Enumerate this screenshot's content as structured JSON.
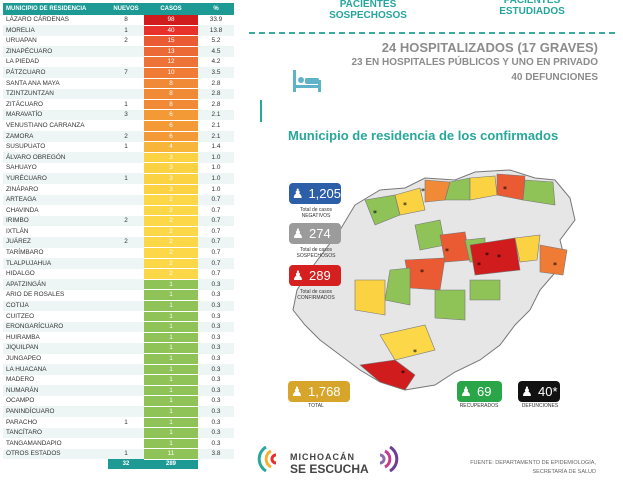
{
  "table": {
    "headers": [
      "MUNICIPIO DE RESIDENCIA",
      "NUEVOS",
      "CASOS",
      "%"
    ],
    "rows": [
      {
        "m": "LÁZARO CÁRDENAS",
        "n": "8",
        "c": "98",
        "p": "33.9",
        "col": "#d01c1c"
      },
      {
        "m": "MORELIA",
        "n": "1",
        "c": "40",
        "p": "13.8",
        "col": "#e8312b"
      },
      {
        "m": "URUAPAN",
        "n": "2",
        "c": "15",
        "p": "5.2",
        "col": "#ea5a33"
      },
      {
        "m": "ZINAPÉCUARO",
        "n": "",
        "c": "13",
        "p": "4.5",
        "col": "#ec6a35"
      },
      {
        "m": "LA PIEDAD",
        "n": "",
        "c": "12",
        "p": "4.2",
        "col": "#ee7336"
      },
      {
        "m": "PÁTZCUARO",
        "n": "7",
        "c": "10",
        "p": "3.5",
        "col": "#ef7b35"
      },
      {
        "m": "SANTA ANA MAYA",
        "n": "",
        "c": "8",
        "p": "2.8",
        "col": "#f08a36"
      },
      {
        "m": "TZINTZUNTZAN",
        "n": "",
        "c": "8",
        "p": "2.8",
        "col": "#f08a36"
      },
      {
        "m": "ZITÁCUARO",
        "n": "1",
        "c": "8",
        "p": "2.8",
        "col": "#f08a36"
      },
      {
        "m": "MARAVATÍO",
        "n": "3",
        "c": "6",
        "p": "2.1",
        "col": "#f39a37"
      },
      {
        "m": "VENUSTIANO CARRANZA",
        "n": "",
        "c": "6",
        "p": "2.1",
        "col": "#f39a37"
      },
      {
        "m": "ZAMORA",
        "n": "2",
        "c": "6",
        "p": "2.1",
        "col": "#f39a37"
      },
      {
        "m": "SUSUPUATO",
        "n": "1",
        "c": "4",
        "p": "1.4",
        "col": "#f7b53a"
      },
      {
        "m": "ÁLVARO OBREGÓN",
        "n": "",
        "c": "3",
        "p": "1.0",
        "col": "#fbd241"
      },
      {
        "m": "SAHUAYO",
        "n": "",
        "c": "3",
        "p": "1.0",
        "col": "#fbd241"
      },
      {
        "m": "YURÉCUARO",
        "n": "1",
        "c": "3",
        "p": "1.0",
        "col": "#fbd241"
      },
      {
        "m": "ZINÁPARO",
        "n": "",
        "c": "3",
        "p": "1.0",
        "col": "#fbd241"
      },
      {
        "m": "ARTEAGA",
        "n": "",
        "c": "2",
        "p": "0.7",
        "col": "#fcd747"
      },
      {
        "m": "CHAVINDA",
        "n": "",
        "c": "2",
        "p": "0.7",
        "col": "#fcd747"
      },
      {
        "m": "IRIMBO",
        "n": "2",
        "c": "2",
        "p": "0.7",
        "col": "#fcd747"
      },
      {
        "m": "IXTLÁN",
        "n": "",
        "c": "2",
        "p": "0.7",
        "col": "#fcd747"
      },
      {
        "m": "JUÁREZ",
        "n": "2",
        "c": "2",
        "p": "0.7",
        "col": "#fcd747"
      },
      {
        "m": "TARÍMBARO",
        "n": "",
        "c": "2",
        "p": "0.7",
        "col": "#fcd747"
      },
      {
        "m": "TLALPUJAHUA",
        "n": "",
        "c": "2",
        "p": "0.7",
        "col": "#fcd747"
      },
      {
        "m": "HIDALGO",
        "n": "",
        "c": "2",
        "p": "0.7",
        "col": "#fcd747"
      },
      {
        "m": "APATZINGÁN",
        "n": "",
        "c": "1",
        "p": "0.3",
        "col": "#8fc257"
      },
      {
        "m": "ARIO DE ROSALES",
        "n": "",
        "c": "1",
        "p": "0.3",
        "col": "#8fc257"
      },
      {
        "m": "COTIJA",
        "n": "",
        "c": "1",
        "p": "0.3",
        "col": "#8fc257"
      },
      {
        "m": "CUITZEO",
        "n": "",
        "c": "1",
        "p": "0.3",
        "col": "#8fc257"
      },
      {
        "m": "ERONGARÍCUARO",
        "n": "",
        "c": "1",
        "p": "0.3",
        "col": "#8fc257"
      },
      {
        "m": "HUIRAMBA",
        "n": "",
        "c": "1",
        "p": "0.3",
        "col": "#8fc257"
      },
      {
        "m": "JIQUILPAN",
        "n": "",
        "c": "1",
        "p": "0.3",
        "col": "#8fc257"
      },
      {
        "m": "JUNGAPEO",
        "n": "",
        "c": "1",
        "p": "0.3",
        "col": "#8fc257"
      },
      {
        "m": "LA HUACANA",
        "n": "",
        "c": "1",
        "p": "0.3",
        "col": "#8fc257"
      },
      {
        "m": "MADERO",
        "n": "",
        "c": "1",
        "p": "0.3",
        "col": "#8fc257"
      },
      {
        "m": "NUMARÁN",
        "n": "",
        "c": "1",
        "p": "0.3",
        "col": "#8fc257"
      },
      {
        "m": "OCAMPO",
        "n": "",
        "c": "1",
        "p": "0.3",
        "col": "#8fc257"
      },
      {
        "m": "PANINDÍCUARO",
        "n": "",
        "c": "1",
        "p": "0.3",
        "col": "#8fc257"
      },
      {
        "m": "PARACHO",
        "n": "1",
        "c": "1",
        "p": "0.3",
        "col": "#8fc257"
      },
      {
        "m": "TANCÍTARO",
        "n": "",
        "c": "1",
        "p": "0.3",
        "col": "#8fc257"
      },
      {
        "m": "TANGAMANDAPIO",
        "n": "",
        "c": "1",
        "p": "0.3",
        "col": "#8fc257"
      },
      {
        "m": "OTROS ESTADOS",
        "n": "1",
        "c": "11",
        "p": "3.8",
        "col": "#8fc257"
      }
    ],
    "total_nuevos": "32",
    "total_casos": "289"
  },
  "header": {
    "sospechosos": "PACIENTES SOSPECHOSOS",
    "estudiados": "PACIENTES ESTUDIADOS"
  },
  "hosp": {
    "line1": "24 HOSPITALIZADOS (17 GRAVES)",
    "line2": "23 EN HOSPITALES PÚBLICOS Y UNO EN PRIVADO",
    "line3": "40 DEFUNCIONES"
  },
  "map_title": "Municipio de residencia de los confirmados",
  "stats": {
    "negativos": {
      "value": "1,205",
      "label": "Total de casos NEGATIVOS",
      "color": "#2c5fa8"
    },
    "sospechosos": {
      "value": "274",
      "label": "Total de casos SOSPECHOSOS",
      "color": "#9b9b9b"
    },
    "confirmados": {
      "value": "289",
      "label": "Total de casos CONFIRMADOS",
      "color": "#d62020"
    },
    "total": {
      "value": "1,768",
      "label": "TOTAL",
      "color": "#d6a52a"
    },
    "recuperados": {
      "value": "69",
      "label": "RECUPERADOS",
      "color": "#2aa547"
    },
    "defunciones": {
      "value": "40*",
      "label": "DEFUNCIONES",
      "color": "#111111"
    }
  },
  "logo": {
    "line1": "MICHOACÁN",
    "line2": "SE ESCUCHA"
  },
  "fuente": {
    "line1": "FUENTE: DEPARTAMENTO DE EPIDEMIOLOGÍA,",
    "line2": "SECRETARÍA DE SALUD"
  },
  "icons": [
    "hospital-bed-icon",
    "person-icon",
    "crowd-icon"
  ]
}
